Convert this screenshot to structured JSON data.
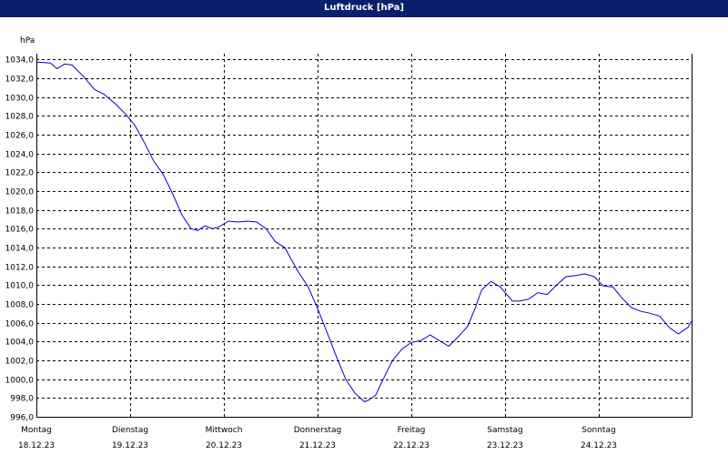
{
  "window": {
    "title": "Luftdruck [hPa]"
  },
  "colors": {
    "title_bar": "#0a1f6e",
    "title_text": "#ffffff",
    "series_line": "#0000cc",
    "grid": "#000000",
    "background": "#ffffff"
  },
  "chart_data": {
    "type": "line",
    "ylabel": "hPa",
    "ylim": [
      996.0,
      1034.6
    ],
    "xlim": [
      0,
      7
    ],
    "grid": true,
    "y_ticks": [
      "1034,0",
      "1032,0",
      "1030,0",
      "1028,0",
      "1026,0",
      "1024,0",
      "1022,0",
      "1020,0",
      "1018,0",
      "1016,0",
      "1014,0",
      "1012,0",
      "1010,0",
      "1008,0",
      "1006,0",
      "1004,0",
      "1002,0",
      "1000,0",
      "998,0",
      "996,0"
    ],
    "x_ticks": [
      {
        "day": "Montag",
        "date": "18.12.23"
      },
      {
        "day": "Dienstag",
        "date": "19.12.23"
      },
      {
        "day": "Mittwoch",
        "date": "20.12.23"
      },
      {
        "day": "Donnerstag",
        "date": "21.12.23"
      },
      {
        "day": "Freitag",
        "date": "22.12.23"
      },
      {
        "day": "Samstag",
        "date": "23.12.23"
      },
      {
        "day": "Sonntag",
        "date": "24.12.23"
      }
    ],
    "series": [
      {
        "x": [
          0,
          0.15,
          0.22,
          0.3,
          0.38,
          0.5,
          0.62,
          0.72,
          0.85,
          0.95,
          1.05,
          1.15,
          1.25,
          1.35,
          1.45,
          1.55,
          1.65,
          1.72,
          1.8,
          1.88,
          1.95,
          2.05,
          2.15,
          2.25,
          2.35,
          2.45,
          2.55,
          2.65,
          2.72,
          2.8,
          2.9,
          3.0,
          3.1,
          3.2,
          3.3,
          3.4,
          3.5,
          3.55,
          3.62,
          3.7,
          3.8,
          3.9,
          4.0,
          4.1,
          4.2,
          4.3,
          4.4,
          4.5,
          4.6,
          4.68,
          4.75,
          4.85,
          4.95,
          5.0,
          5.08,
          5.15,
          5.25,
          5.35,
          5.45,
          5.55,
          5.65,
          5.75,
          5.85,
          5.95,
          6.05,
          6.15,
          6.25,
          6.35,
          6.45,
          6.55,
          6.65,
          6.75,
          6.85,
          6.95,
          7.0
        ],
        "y": [
          1033.7,
          1033.6,
          1033.0,
          1033.5,
          1033.4,
          1032.2,
          1030.8,
          1030.3,
          1029.2,
          1028.2,
          1027.0,
          1025.2,
          1023.2,
          1021.8,
          1019.8,
          1017.5,
          1016.0,
          1015.8,
          1016.3,
          1016.0,
          1016.2,
          1016.8,
          1016.7,
          1016.8,
          1016.7,
          1016.0,
          1014.6,
          1014.0,
          1012.7,
          1011.3,
          1009.8,
          1007.5,
          1005.0,
          1002.4,
          1000.0,
          998.5,
          997.6,
          997.8,
          998.3,
          1000.0,
          1002.0,
          1003.2,
          1003.9,
          1004.1,
          1004.7,
          1004.1,
          1003.5,
          1004.5,
          1005.6,
          1007.5,
          1009.5,
          1010.4,
          1009.8,
          1009.2,
          1008.3,
          1008.3,
          1008.5,
          1009.2,
          1009.0,
          1010.0,
          1010.9,
          1011.0,
          1011.2,
          1010.9,
          1009.9,
          1009.8,
          1008.6,
          1007.6,
          1007.2,
          1007.0,
          1006.7,
          1005.5,
          1004.8,
          1005.5,
          1006.3
        ]
      }
    ]
  }
}
